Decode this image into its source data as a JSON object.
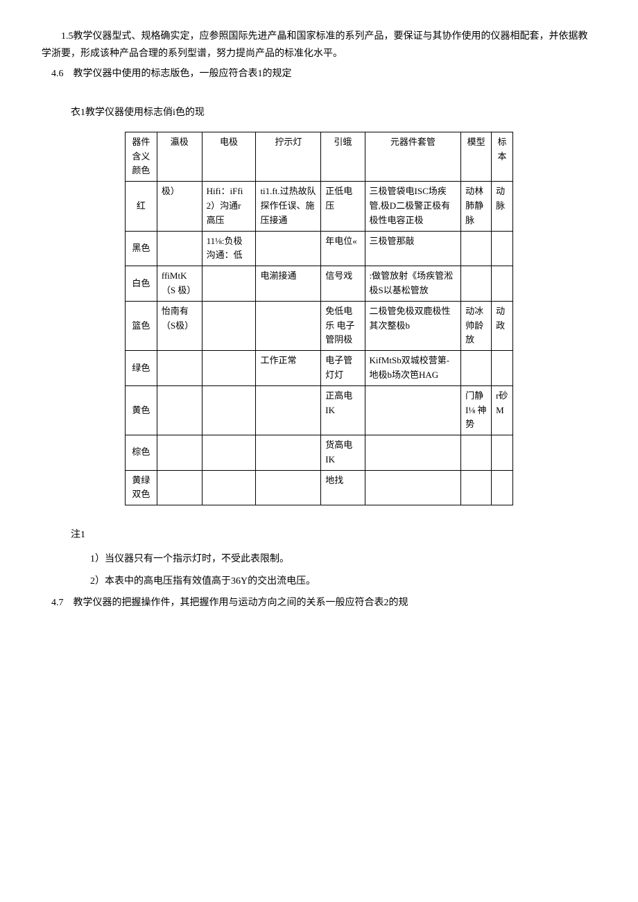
{
  "paragraphs": {
    "p1": "1.5教学仪器型式、规格确实定，应参照国际先进产晶和国家标准的系列产品，要保证与其协作使用的仪器相配套，并依据教学浙要，形成该种产品合理的系列型谱，努力提尚产品的标准化水平。",
    "p2_num": "4.6",
    "p2_text": "教学仪器中使用的标志版色，一般应符合表1的规定",
    "caption": "衣1教学仪器使用标志俏i色的现",
    "notes_header": "注1",
    "note1": "1）当仪器只有一个指示灯时，不受此表限制。",
    "note2": "2）本表中的高电压指有效值高于36Y的交出流电压。",
    "p3_num": "4.7",
    "p3_text": "教学仪器的把握操作件，其把握作用与运动方向之间的关系一般应符合表2的规"
  },
  "table": {
    "headers": [
      "器件含义颜色",
      "瀛极",
      "电极",
      "拧示灯",
      "引蛾",
      "元器件套管",
      "模型",
      "标本"
    ],
    "rows": [
      {
        "color": "红",
        "c1": "极）",
        "c2": "Hifi：iFfi 2）沟通r 高压",
        "c3": "ti1.ft.过热故队 探作任误、施压接通",
        "c4": "正低电压",
        "c5": "三极管袋电ISC场疾管,极D二极警正极有极性电容正极",
        "c6": "动林肺静脉",
        "c7": "动脉"
      },
      {
        "color": "黑色",
        "c1": "",
        "c2": "11⅛:负极沟通：低",
        "c3": "",
        "c4": "年电位«",
        "c5": "三极管那敲",
        "c6": "",
        "c7": ""
      },
      {
        "color": "白色",
        "c1": "ffiMtK（S 极）",
        "c2": "",
        "c3": "电湔接通",
        "c4": "信号戏",
        "c5": ":做管放射《场疾管淞极S以基松管放",
        "c6": "",
        "c7": ""
      },
      {
        "color": "篮色",
        "c1": "怡南有（S极）",
        "c2": "",
        "c3": "",
        "c4": "免低电乐 电子管阴极",
        "c5": "二极管免极双鹿极性其次整极b",
        "c6": "动冰帅龄放",
        "c7": "动政"
      },
      {
        "color": "绿色",
        "c1": "",
        "c2": "",
        "c3": "工作正常",
        "c4": "电子管灯灯",
        "c5": "KifMtSb双城校营第-地极b场次笆HAG",
        "c6": "",
        "c7": ""
      },
      {
        "color": "黄色",
        "c1": "",
        "c2": "",
        "c3": "",
        "c4": "正高电IK",
        "c5": "",
        "c6": "门静I⅛ 神势",
        "c7": "r砂M"
      },
      {
        "color": "棕色",
        "c1": "",
        "c2": "",
        "c3": "",
        "c4": "货高电IK",
        "c5": "",
        "c6": "",
        "c7": ""
      },
      {
        "color": "黄绿双色",
        "c1": "",
        "c2": "",
        "c3": "",
        "c4": "地找",
        "c5": "",
        "c6": "",
        "c7": ""
      }
    ]
  }
}
